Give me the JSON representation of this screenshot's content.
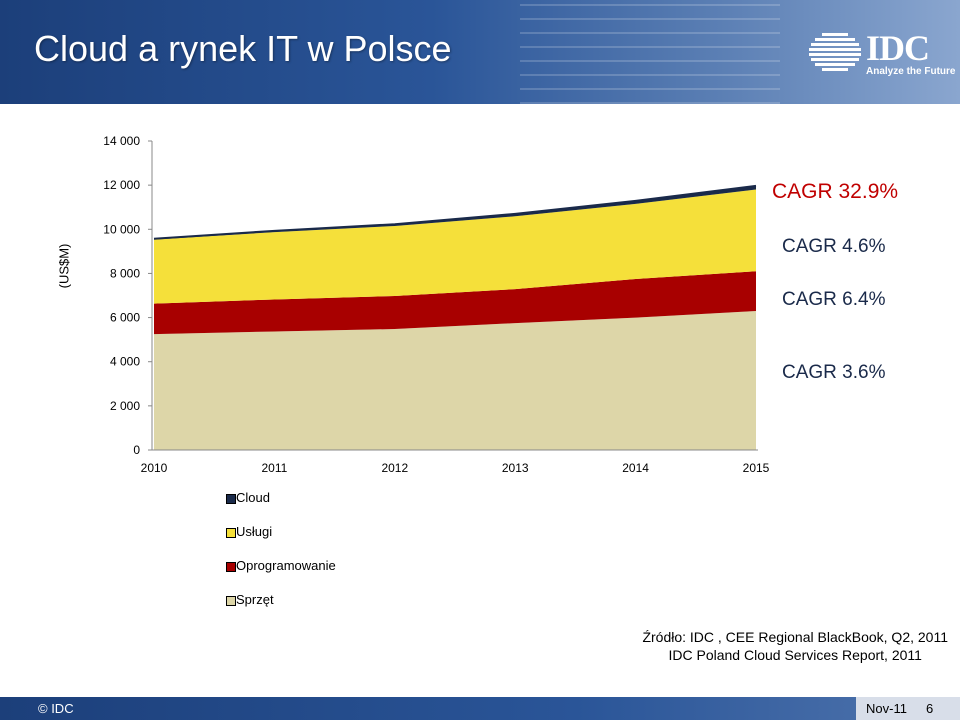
{
  "slide": {
    "title": "Cloud a rynek IT w Polsce",
    "logo_text": "IDC",
    "logo_tagline": "Analyze the Future"
  },
  "chart_data": {
    "type": "area",
    "stacked": true,
    "x": [
      "2010",
      "2011",
      "2012",
      "2013",
      "2014",
      "2015"
    ],
    "yticks": [
      "14 000",
      "12 000",
      "10 000",
      "8 000",
      "6 000",
      "4 000",
      "2 000",
      "0"
    ],
    "ylim": [
      0,
      14000
    ],
    "ylabel": "(US$M)",
    "series": [
      {
        "name": "Sprzęt",
        "color": "#ddd6a8",
        "values": [
          5250,
          5370,
          5480,
          5750,
          6000,
          6300
        ]
      },
      {
        "name": "Oprogramowanie",
        "color": "#a80000",
        "values": [
          1380,
          1450,
          1500,
          1540,
          1750,
          1800
        ]
      },
      {
        "name": "Usługi",
        "color": "#f5e03a",
        "values": [
          2900,
          3050,
          3170,
          3300,
          3400,
          3700
        ]
      },
      {
        "name": "Cloud",
        "color": "#1a2a4a",
        "values": [
          40,
          60,
          80,
          110,
          140,
          170
        ]
      }
    ],
    "legend_position": "bottom-left",
    "grid": false
  },
  "cagr": [
    {
      "label": "CAGR 32.9%",
      "highlight": true
    },
    {
      "label": "CAGR 4.6%",
      "highlight": false
    },
    {
      "label": "CAGR 6.4%",
      "highlight": false
    },
    {
      "label": "CAGR 3.6%",
      "highlight": false
    }
  ],
  "legend": [
    "Cloud",
    "Usługi",
    "Oprogramowanie",
    "Sprzęt"
  ],
  "source": {
    "line1": "Źródło: IDC , CEE Regional BlackBook, Q2, 2011",
    "line2": "IDC Poland Cloud Services Report, 2011"
  },
  "footer": {
    "copyright": "© IDC",
    "date": "Nov-11",
    "page": "6"
  }
}
